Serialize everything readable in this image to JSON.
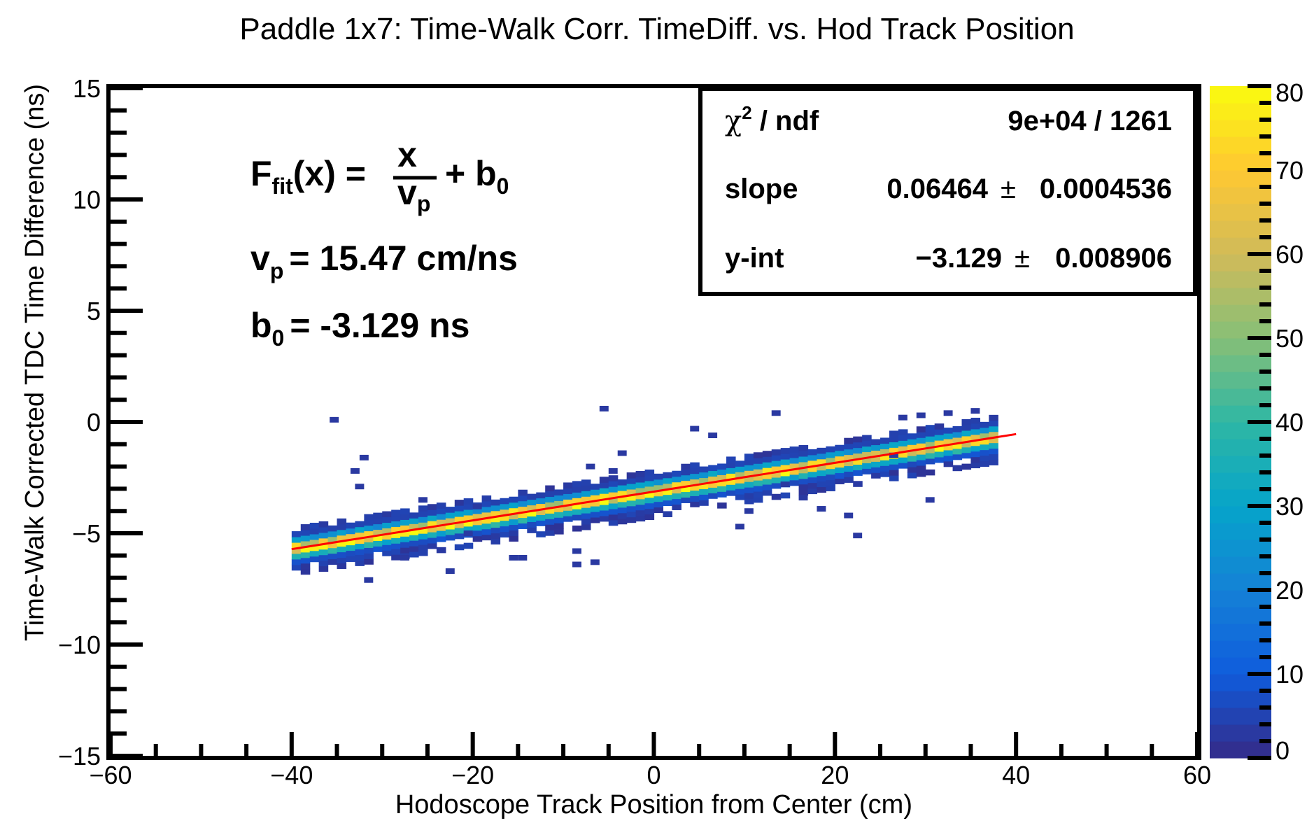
{
  "chart_data": {
    "type": "heatmap",
    "title": "Paddle 1x7: Time-Walk Corr. TimeDiff. vs. Hod Track Position",
    "xlabel": "Hodoscope Track Position from Center (cm)",
    "ylabel": "Time-Walk Corrected TDC Time Difference (ns)",
    "xlim": [
      -60,
      60
    ],
    "ylim": [
      -15,
      15
    ],
    "x_ticks": [
      "−60",
      "−40",
      "−20",
      "0",
      "20",
      "40",
      "60"
    ],
    "y_ticks": [
      "−15",
      "−10",
      "−5",
      "0",
      "5",
      "10",
      "15"
    ],
    "z_range": [
      0,
      80
    ],
    "z_ticks": [
      "0",
      "10",
      "20",
      "30",
      "40",
      "50",
      "60",
      "70",
      "80"
    ],
    "colorbar_colors": [
      "#352a87",
      "#0f5cdd",
      "#1481d6",
      "#06a4ca",
      "#2eb7a4",
      "#87bf77",
      "#d1bb59",
      "#fec832",
      "#f9fb0e"
    ],
    "band": {
      "x_min": -40,
      "x_max": 37.5,
      "slope": 0.06464,
      "intercept": -3.129,
      "peak_counts": 80
    },
    "fit": {
      "x_range": [
        -40,
        40
      ],
      "slope": 0.06464,
      "intercept": -3.129,
      "color": "#ff0000"
    },
    "outliers": [
      [
        -35.8,
        0.1
      ],
      [
        -33.5,
        -2.2
      ],
      [
        -32.5,
        -1.6
      ],
      [
        -33.0,
        -2.9
      ],
      [
        -32.0,
        -7.1
      ],
      [
        -23.0,
        -6.7
      ],
      [
        -20.0,
        -3.8
      ],
      [
        -16.0,
        -6.1
      ],
      [
        -15.0,
        -6.1
      ],
      [
        -9.0,
        -5.8
      ],
      [
        -9.0,
        -6.4
      ],
      [
        -7.0,
        -6.3
      ],
      [
        -7.5,
        -2.0
      ],
      [
        -6.0,
        0.6
      ],
      [
        -4.0,
        -1.4
      ],
      [
        -5.0,
        -2.2
      ],
      [
        4.0,
        -0.3
      ],
      [
        6.0,
        -0.6
      ],
      [
        9.0,
        -4.7
      ],
      [
        10.0,
        -4.0
      ],
      [
        13.0,
        0.4
      ],
      [
        14.0,
        -2.8
      ],
      [
        16.0,
        -3.4
      ],
      [
        21.0,
        -4.2
      ],
      [
        22.0,
        -5.1
      ],
      [
        27.0,
        0.2
      ],
      [
        29.0,
        0.3
      ],
      [
        30.0,
        -3.5
      ],
      [
        32.0,
        0.4
      ],
      [
        35.0,
        0.5
      ],
      [
        26.0,
        -1.5
      ],
      [
        -21.0,
        -5.0
      ],
      [
        -26.0,
        -3.5
      ],
      [
        -28.0,
        -6.1
      ],
      [
        18.0,
        -3.9
      ]
    ]
  },
  "formula": {
    "lhs": "F",
    "lhs_sub": "fit",
    "lhs_arg": "(x) =",
    "numerator": "x",
    "denominator": "v",
    "denominator_sub": "p",
    "rhs": "+ b",
    "rhs_sub": "0",
    "vp_label": "v",
    "vp_sub": "p",
    "vp_value": "= 15.47 cm/ns",
    "b0_label": "b",
    "b0_sub": "0",
    "b0_value": "= -3.129 ns"
  },
  "stats_box": {
    "chi2_label": "χ",
    "chi2_sup": "2",
    "chi2_rest": " / ndf",
    "chi2_value": "9e+04 / 1261",
    "slope_label": "slope",
    "slope_value": "0.06464",
    "slope_pm": "±",
    "slope_error": "0.0004536",
    "yint_label": "y-int",
    "yint_value": "−3.129",
    "yint_pm": "±",
    "yint_error": "0.008906"
  }
}
